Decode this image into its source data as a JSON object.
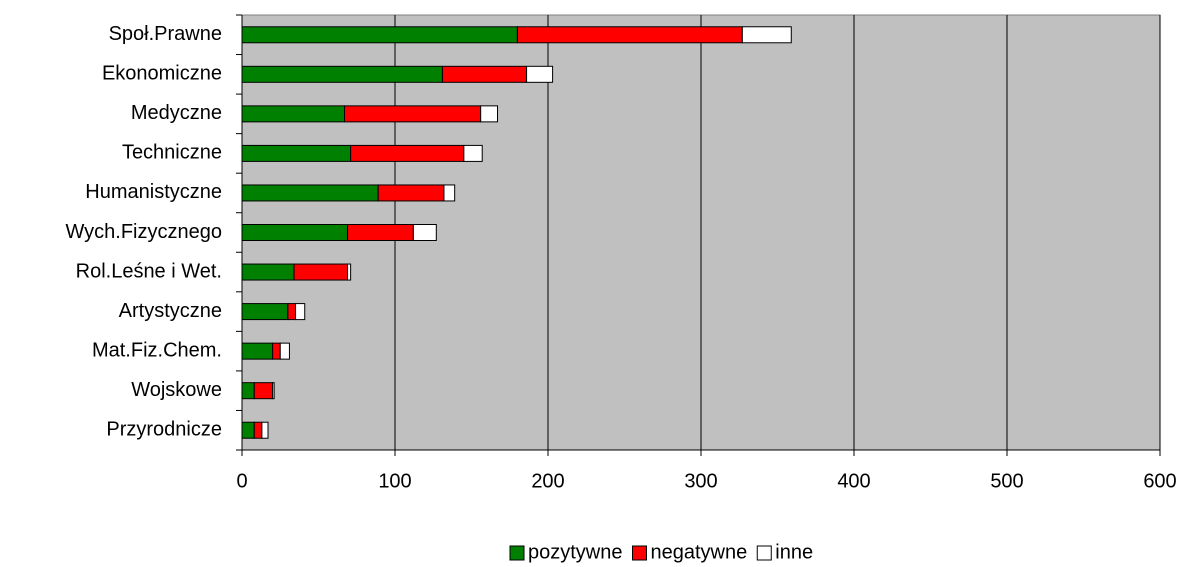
{
  "chart_data": {
    "type": "bar",
    "orientation": "horizontal",
    "stacked": true,
    "categories": [
      "Społ.Prawne",
      "Ekonomiczne",
      "Medyczne",
      "Techniczne",
      "Humanistyczne",
      "Wych.Fizycznego",
      "Rol.Leśne i Wet.",
      "Artystyczne",
      "Mat.Fiz.Chem.",
      "Wojskowe",
      "Przyrodnicze"
    ],
    "series": [
      {
        "name": "pozytywne",
        "color": "#008000",
        "values": [
          180,
          131,
          67,
          71,
          89,
          69,
          34,
          30,
          20,
          8,
          8
        ]
      },
      {
        "name": "negatywne",
        "color": "#ff0000",
        "values": [
          147,
          55,
          89,
          74,
          43,
          43,
          35,
          5,
          5,
          12,
          5
        ]
      },
      {
        "name": "inne",
        "color": "#ffffff",
        "values": [
          32,
          17,
          11,
          12,
          7,
          15,
          2,
          6,
          6,
          1,
          4
        ]
      }
    ],
    "xlim": [
      0,
      600
    ],
    "xticks": [
      0,
      100,
      200,
      300,
      400,
      500,
      600
    ],
    "grid": true,
    "plot_background": "#c0c0c0",
    "legend": "bottom"
  }
}
